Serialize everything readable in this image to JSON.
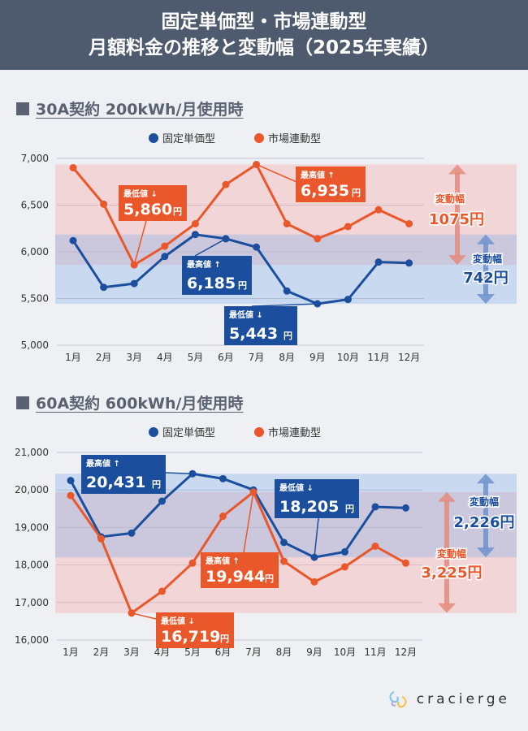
{
  "header": {
    "title_line1": "固定単価型・市場連動型",
    "title_line2": "月額料金の推移と変動幅（2025年実績）"
  },
  "colors": {
    "fixed": "#1b4f9e",
    "market": "#e9572a",
    "header_bg": "#4e5a6e"
  },
  "legend": {
    "fixed": "固定単価型",
    "market": "市場連動型"
  },
  "logo": {
    "text": "cracierge",
    "icon": "logo-icon"
  },
  "chart_data": [
    {
      "type": "line",
      "section_title": "30A契約 200kWh/月使用時",
      "categories": [
        "1月",
        "2月",
        "3月",
        "4月",
        "5月",
        "6月",
        "7月",
        "8月",
        "9月",
        "10月",
        "11月",
        "12月"
      ],
      "y_ticks": [
        "7,000",
        "6,500",
        "6,000",
        "5,500",
        "5,000"
      ],
      "ylim": [
        5000,
        7000
      ],
      "series": [
        {
          "name": "固定単価型",
          "key": "fixed",
          "values": [
            6120,
            5620,
            5660,
            5950,
            6185,
            6140,
            6050,
            5580,
            5443,
            5490,
            5890,
            5880
          ]
        },
        {
          "name": "市場連動型",
          "key": "market",
          "values": [
            6900,
            6510,
            5860,
            6060,
            6300,
            6720,
            6935,
            6300,
            6140,
            6270,
            6450,
            6300
          ]
        }
      ],
      "annotations": {
        "fixed_max": {
          "label": "最高値",
          "arrow": "↑",
          "value": "6,185",
          "unit": "円"
        },
        "fixed_min": {
          "label": "最低値",
          "arrow": "↓",
          "value": "5,443",
          "unit": "円"
        },
        "market_max": {
          "label": "最高値",
          "arrow": "↑",
          "value": "6,935",
          "unit": "円"
        },
        "market_min": {
          "label": "最低値",
          "arrow": "↓",
          "value": "5,860",
          "unit": "円"
        }
      },
      "range": {
        "fixed": {
          "label": "変動幅",
          "value": "742円",
          "low": 5443,
          "high": 6185
        },
        "market": {
          "label": "変動幅",
          "value": "1075円",
          "low": 5860,
          "high": 6935
        }
      }
    },
    {
      "type": "line",
      "section_title": "60A契約 600kWh/月使用時",
      "categories": [
        "1月",
        "2月",
        "3月",
        "4月",
        "5月",
        "6月",
        "7月",
        "8月",
        "9月",
        "10月",
        "11月",
        "12月"
      ],
      "y_ticks": [
        "21,000",
        "20,000",
        "19,000",
        "18,000",
        "17,000",
        "16,000"
      ],
      "ylim": [
        16000,
        21000
      ],
      "series": [
        {
          "name": "固定単価型",
          "key": "fixed",
          "values": [
            20250,
            18750,
            18850,
            19700,
            20431,
            20300,
            20000,
            18600,
            18205,
            18350,
            19550,
            19520
          ]
        },
        {
          "name": "市場連動型",
          "key": "market",
          "values": [
            19850,
            18700,
            16719,
            17300,
            18050,
            19300,
            19944,
            18100,
            17550,
            17950,
            18500,
            18050
          ]
        }
      ],
      "annotations": {
        "fixed_max": {
          "label": "最高値",
          "arrow": "↑",
          "value": "20,431",
          "unit": "円"
        },
        "fixed_min": {
          "label": "最低値",
          "arrow": "↓",
          "value": "18,205",
          "unit": "円"
        },
        "market_max": {
          "label": "最高値",
          "arrow": "↑",
          "value": "19,944",
          "unit": "円"
        },
        "market_min": {
          "label": "最低値",
          "arrow": "↓",
          "value": "16,719",
          "unit": "円"
        }
      },
      "range": {
        "fixed": {
          "label": "変動幅",
          "value": "2,226円",
          "low": 18205,
          "high": 20431
        },
        "market": {
          "label": "変動幅",
          "value": "3,225円",
          "low": 16719,
          "high": 19944
        }
      }
    }
  ]
}
